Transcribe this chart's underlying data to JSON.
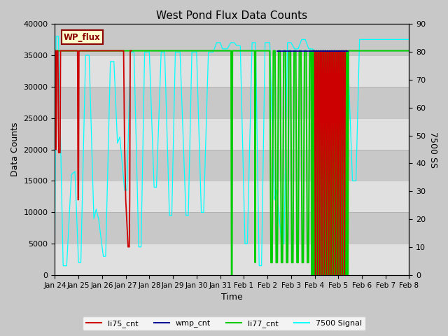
{
  "title": "West Pond Flux Data Counts",
  "xlabel": "Time",
  "ylabel_left": "Data Counts",
  "ylabel_right": "7500 SS",
  "ylim_left": [
    0,
    40000
  ],
  "ylim_right": [
    0,
    90
  ],
  "bg_color": "#c8c8c8",
  "wp_flux_label": "WP_flux",
  "xtick_labels": [
    "Jan 24",
    "Jan 25",
    "Jan 26",
    "Jan 27",
    "Jan 28",
    "Jan 29",
    "Jan 30",
    "Jan 31",
    "Feb 1",
    "Feb 2",
    "Feb 3",
    "Feb 4",
    "Feb 5",
    "Feb 6",
    "Feb 7",
    "Feb 8"
  ],
  "yticks_left": [
    0,
    5000,
    10000,
    15000,
    20000,
    25000,
    30000,
    35000,
    40000
  ],
  "yticks_right": [
    0,
    10,
    20,
    30,
    40,
    50,
    60,
    70,
    80,
    90
  ],
  "total_days": 15,
  "green_flat": 35700,
  "cyan_color": "cyan",
  "red_color": "#cc0000",
  "green_color": "#00cc00",
  "blue_color": "#000099"
}
